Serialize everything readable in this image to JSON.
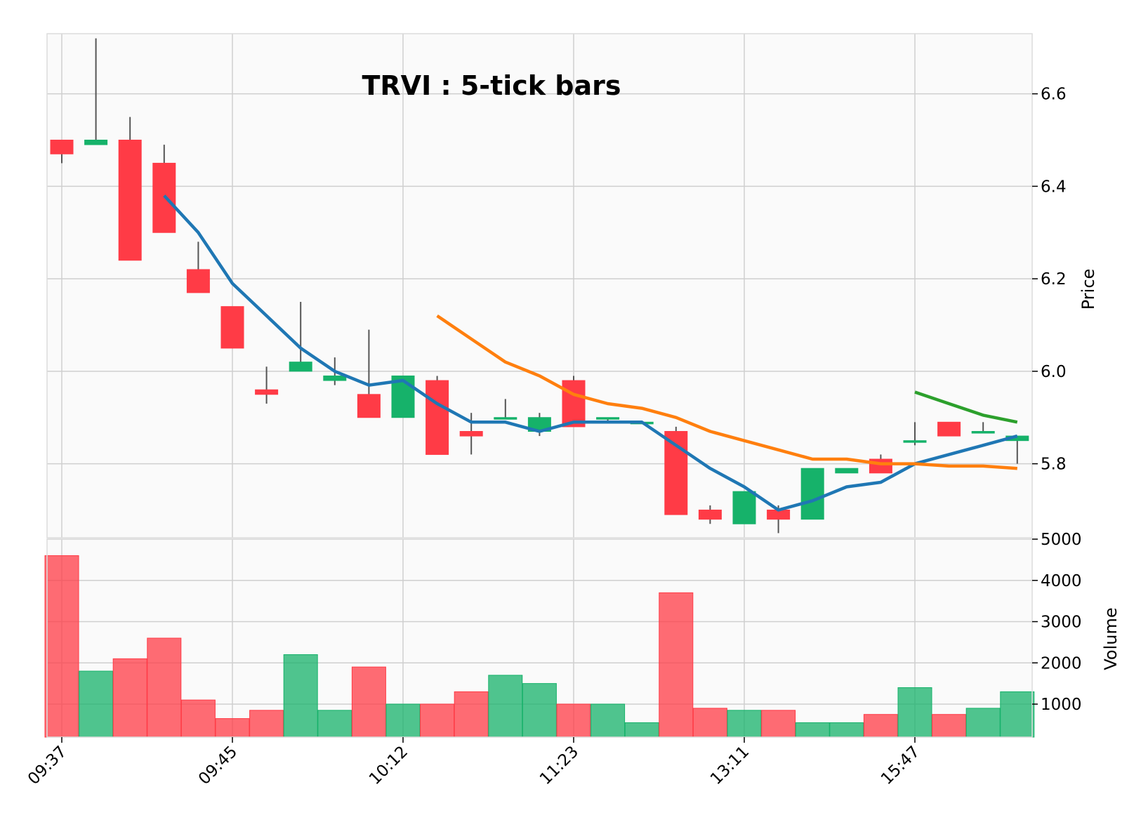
{
  "chart_data": {
    "type": "candlestick",
    "title": "TRVI : 5-tick bars",
    "price_panel": {
      "ylabel": "Price",
      "ylim": [
        5.64,
        6.73
      ],
      "yticks": [
        5.8,
        6.0,
        6.2,
        6.4,
        6.6
      ],
      "ytick_labels": [
        "5.8",
        "6.0",
        "6.2",
        "6.4",
        "6.6"
      ],
      "grid": true
    },
    "volume_panel": {
      "ylabel": "Volume",
      "ylim": [
        200,
        5000
      ],
      "yticks": [
        1000,
        2000,
        3000,
        4000,
        5000
      ],
      "ytick_labels": [
        "1000",
        "2000",
        "3000",
        "4000",
        "5000"
      ],
      "grid": true
    },
    "xtick_indices": [
      0,
      5,
      10,
      15,
      20,
      25
    ],
    "xtick_labels": [
      "09:37",
      "09:45",
      "10:12",
      "11:23",
      "13:11",
      "15:47"
    ],
    "up_color": "#16b26a",
    "down_color": "#ff3b46",
    "bars": [
      {
        "o": 6.5,
        "h": 6.5,
        "l": 6.45,
        "c": 6.47,
        "v": 4600
      },
      {
        "o": 6.49,
        "h": 6.72,
        "l": 6.49,
        "c": 6.5,
        "v": 1800
      },
      {
        "o": 6.5,
        "h": 6.55,
        "l": 6.24,
        "c": 6.24,
        "v": 2100
      },
      {
        "o": 6.45,
        "h": 6.49,
        "l": 6.3,
        "c": 6.3,
        "v": 2600
      },
      {
        "o": 6.22,
        "h": 6.28,
        "l": 6.17,
        "c": 6.17,
        "v": 1100
      },
      {
        "o": 6.14,
        "h": 6.14,
        "l": 6.05,
        "c": 6.05,
        "v": 650
      },
      {
        "o": 5.96,
        "h": 6.01,
        "l": 5.93,
        "c": 5.95,
        "v": 850
      },
      {
        "o": 6.0,
        "h": 6.15,
        "l": 6.0,
        "c": 6.02,
        "v": 2200
      },
      {
        "o": 5.98,
        "h": 6.03,
        "l": 5.97,
        "c": 5.99,
        "v": 850
      },
      {
        "o": 5.95,
        "h": 6.09,
        "l": 5.9,
        "c": 5.9,
        "v": 1900
      },
      {
        "o": 5.9,
        "h": 5.99,
        "l": 5.9,
        "c": 5.99,
        "v": 1000
      },
      {
        "o": 5.98,
        "h": 5.99,
        "l": 5.82,
        "c": 5.82,
        "v": 1000
      },
      {
        "o": 5.87,
        "h": 5.91,
        "l": 5.82,
        "c": 5.86,
        "v": 1300
      },
      {
        "o": 5.9,
        "h": 5.94,
        "l": 5.9,
        "c": 5.9,
        "v": 1700
      },
      {
        "o": 5.87,
        "h": 5.91,
        "l": 5.86,
        "c": 5.9,
        "v": 1500
      },
      {
        "o": 5.98,
        "h": 5.99,
        "l": 5.88,
        "c": 5.88,
        "v": 1000
      },
      {
        "o": 5.9,
        "h": 5.9,
        "l": 5.89,
        "c": 5.9,
        "v": 1000
      },
      {
        "o": 5.89,
        "h": 5.89,
        "l": 5.89,
        "c": 5.89,
        "v": 550
      },
      {
        "o": 5.87,
        "h": 5.88,
        "l": 5.69,
        "c": 5.69,
        "v": 3700
      },
      {
        "o": 5.7,
        "h": 5.71,
        "l": 5.67,
        "c": 5.68,
        "v": 900
      },
      {
        "o": 5.67,
        "h": 5.74,
        "l": 5.67,
        "c": 5.74,
        "v": 850
      },
      {
        "o": 5.7,
        "h": 5.71,
        "l": 5.65,
        "c": 5.68,
        "v": 850
      },
      {
        "o": 5.68,
        "h": 5.79,
        "l": 5.68,
        "c": 5.79,
        "v": 550
      },
      {
        "o": 5.78,
        "h": 5.79,
        "l": 5.78,
        "c": 5.79,
        "v": 550
      },
      {
        "o": 5.81,
        "h": 5.82,
        "l": 5.78,
        "c": 5.78,
        "v": 750
      },
      {
        "o": 5.85,
        "h": 5.89,
        "l": 5.84,
        "c": 5.85,
        "v": 1400
      },
      {
        "o": 5.89,
        "h": 5.89,
        "l": 5.86,
        "c": 5.86,
        "v": 750
      },
      {
        "o": 5.87,
        "h": 5.89,
        "l": 5.87,
        "c": 5.87,
        "v": 900
      },
      {
        "o": 5.85,
        "h": 5.86,
        "l": 5.8,
        "c": 5.86,
        "v": 1300
      }
    ],
    "moving_averages": [
      {
        "color": "#1f77b4",
        "start_index": 3,
        "values": [
          6.38,
          6.3,
          6.19,
          6.12,
          6.05,
          6.0,
          5.97,
          5.98,
          5.93,
          5.89,
          5.89,
          5.87,
          5.89,
          5.89,
          5.89,
          5.84,
          5.79,
          5.75,
          5.7,
          5.72,
          5.75,
          5.76,
          5.8,
          5.82,
          5.84,
          5.86
        ]
      },
      {
        "color": "#ff7f0e",
        "start_index": 11,
        "values": [
          6.12,
          6.07,
          6.02,
          5.99,
          5.95,
          5.93,
          5.92,
          5.9,
          5.87,
          5.85,
          5.83,
          5.81,
          5.81,
          5.8,
          5.8,
          5.795,
          5.795,
          5.79
        ]
      },
      {
        "color": "#2ca02c",
        "start_index": 25,
        "values": [
          5.955,
          5.93,
          5.905,
          5.89
        ]
      }
    ]
  }
}
